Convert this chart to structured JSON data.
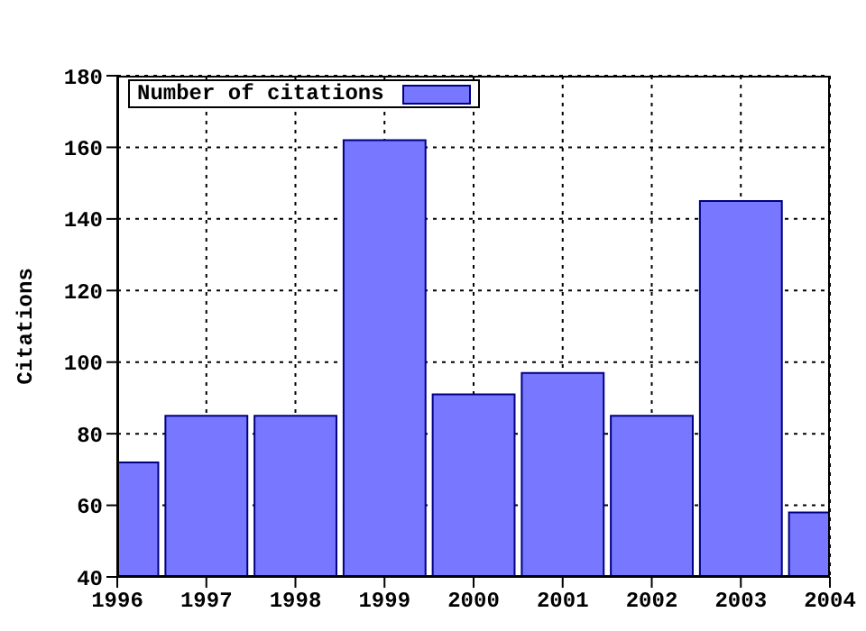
{
  "chart_data": {
    "type": "bar",
    "ylabel": "Citations",
    "x": [
      1996,
      1997,
      1998,
      1999,
      2000,
      2001,
      2002,
      2003,
      2004
    ],
    "series": [
      {
        "name": "Number of citations",
        "color": "#7777ff",
        "values": [
          72,
          85,
          85,
          162,
          91,
          97,
          85,
          145,
          58
        ]
      }
    ],
    "xlim": [
      1996,
      2004
    ],
    "xticks": [
      1996,
      1997,
      1998,
      1999,
      2000,
      2001,
      2002,
      2003,
      2004
    ],
    "ylim": [
      40,
      180
    ],
    "yticks": [
      40,
      60,
      80,
      100,
      120,
      140,
      160,
      180
    ],
    "grid": true,
    "legend": "top left"
  }
}
